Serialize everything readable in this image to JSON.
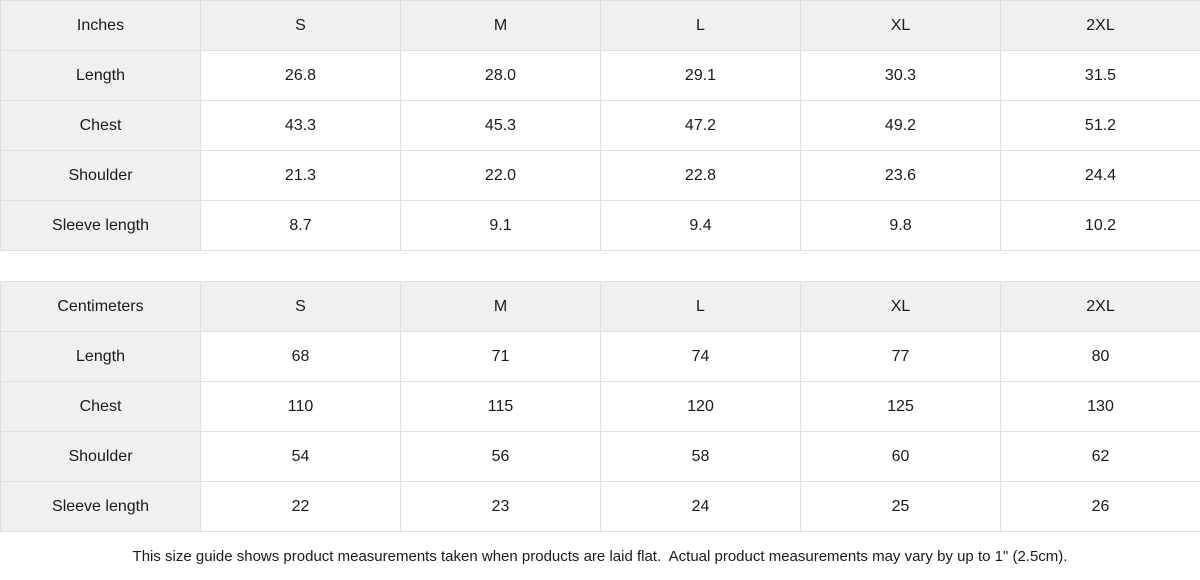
{
  "style": {
    "header_bg": "#f0f0f0",
    "border_color": "#e0e0e0",
    "text_color": "#1a1a1a",
    "cell_bg": "#ffffff"
  },
  "tables": [
    {
      "unit_label": "Inches",
      "sizes": [
        "S",
        "M",
        "L",
        "XL",
        "2XL"
      ],
      "rows": [
        {
          "label": "Length",
          "values": [
            "26.8",
            "28.0",
            "29.1",
            "30.3",
            "31.5"
          ]
        },
        {
          "label": "Chest",
          "values": [
            "43.3",
            "45.3",
            "47.2",
            "49.2",
            "51.2"
          ]
        },
        {
          "label": "Shoulder",
          "values": [
            "21.3",
            "22.0",
            "22.8",
            "23.6",
            "24.4"
          ]
        },
        {
          "label": "Sleeve length",
          "values": [
            "8.7",
            "9.1",
            "9.4",
            "9.8",
            "10.2"
          ]
        }
      ]
    },
    {
      "unit_label": "Centimeters",
      "sizes": [
        "S",
        "M",
        "L",
        "XL",
        "2XL"
      ],
      "rows": [
        {
          "label": "Length",
          "values": [
            "68",
            "71",
            "74",
            "77",
            "80"
          ]
        },
        {
          "label": "Chest",
          "values": [
            "110",
            "115",
            "120",
            "125",
            "130"
          ]
        },
        {
          "label": "Shoulder",
          "values": [
            "54",
            "56",
            "58",
            "60",
            "62"
          ]
        },
        {
          "label": "Sleeve length",
          "values": [
            "22",
            "23",
            "24",
            "25",
            "26"
          ]
        }
      ]
    }
  ],
  "footer": {
    "note": "This size guide shows product measurements taken when products are laid flat.  Actual product measurements may vary by up to 1\" (2.5cm)."
  }
}
